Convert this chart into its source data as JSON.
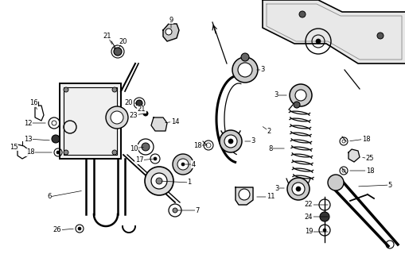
{
  "bg_color": "#ffffff",
  "fig_width": 5.1,
  "fig_height": 3.2,
  "dpi": 100,
  "line_color": "#000000",
  "label_fontsize": 6.0
}
